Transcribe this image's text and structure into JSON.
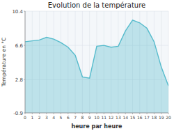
{
  "chart_data": {
    "type": "area",
    "title": "Evolution de la température",
    "x_label": "heure par heure",
    "y_label": "Température en °C",
    "x": [
      0,
      1,
      2,
      3,
      4,
      5,
      6,
      7,
      8,
      9,
      10,
      11,
      12,
      13,
      14,
      15,
      16,
      17,
      18,
      19,
      20
    ],
    "values": [
      7.0,
      7.1,
      7.2,
      7.5,
      7.3,
      6.9,
      6.4,
      5.5,
      3.1,
      2.95,
      6.5,
      6.6,
      6.4,
      6.5,
      8.2,
      9.4,
      9.1,
      8.5,
      7.0,
      4.2,
      2.1
    ],
    "color": "#55bbcc",
    "xlim": [
      0,
      20
    ],
    "xticks": [
      0,
      1,
      2,
      3,
      4,
      5,
      6,
      7,
      8,
      9,
      10,
      11,
      12,
      13,
      14,
      15,
      16,
      17,
      18,
      19,
      20
    ],
    "ylim": [
      -0.9,
      10.4
    ],
    "yticks": [
      -0.9,
      2.8,
      6.6,
      10.4
    ],
    "grid": true
  }
}
